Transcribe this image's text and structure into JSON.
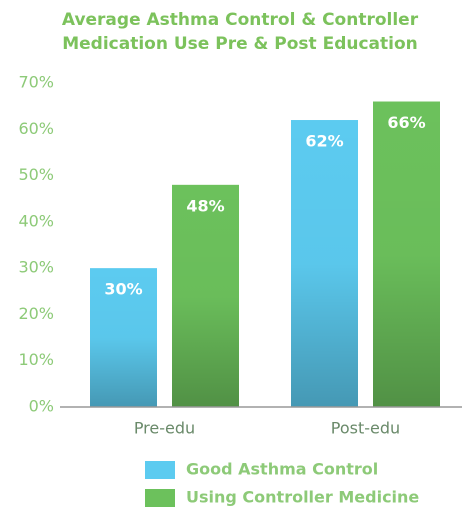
{
  "chart_data": {
    "type": "bar",
    "title": "Average Asthma Control & Controller Medication Use Pre & Post Education",
    "categories": [
      "Pre-edu",
      "Post-edu"
    ],
    "series": [
      {
        "name": "Good Asthma Control",
        "color": "#5ccbf0",
        "values": [
          30,
          62
        ],
        "value_labels": [
          "30%",
          "62%"
        ]
      },
      {
        "name": "Using Controller Medicine",
        "color": "#6cc15c",
        "values": [
          48,
          66
        ],
        "value_labels": [
          "48%",
          "66%"
        ]
      }
    ],
    "ylim": [
      0,
      70
    ],
    "yticks": [
      {
        "value": 0,
        "label": "0%"
      },
      {
        "value": 10,
        "label": "10%"
      },
      {
        "value": 20,
        "label": "20%"
      },
      {
        "value": 30,
        "label": "30%"
      },
      {
        "value": 40,
        "label": "40%"
      },
      {
        "value": 50,
        "label": "50%"
      },
      {
        "value": 60,
        "label": "60%"
      },
      {
        "value": 70,
        "label": "70%"
      }
    ],
    "grid": false
  }
}
